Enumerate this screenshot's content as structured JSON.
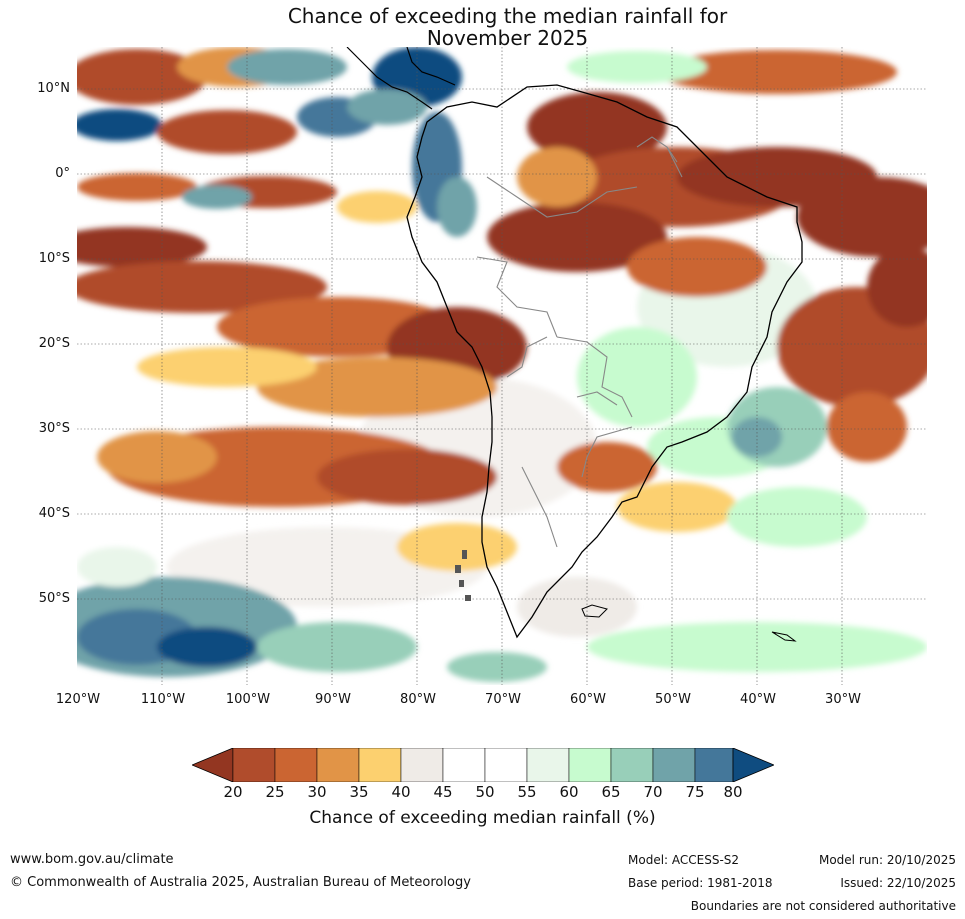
{
  "title": {
    "line1": "Chance of exceeding the median rainfall for",
    "line2": "November 2025"
  },
  "map": {
    "lat_labels": [
      "10°N",
      "0°",
      "10°S",
      "20°S",
      "30°S",
      "40°S",
      "50°S"
    ],
    "lon_labels": [
      "120°W",
      "110°W",
      "100°W",
      "90°W",
      "80°W",
      "70°W",
      "60°W",
      "50°W",
      "40°W",
      "30°W"
    ]
  },
  "colorbar": {
    "label": "Chance of exceeding median rainfall (%)",
    "ticks": [
      "20",
      "25",
      "30",
      "35",
      "40",
      "45",
      "50",
      "55",
      "60",
      "65",
      "70",
      "75",
      "80"
    ],
    "colors": [
      "#933621",
      "#b04c2c",
      "#cb6532",
      "#e19447",
      "#fcd06f",
      "#efebe7",
      "#ffffff",
      "#ffffff",
      "#e9f6ea",
      "#c7fbcf",
      "#98cfb9",
      "#70a3a9",
      "#44779a",
      "#0f4c80"
    ]
  },
  "footer": {
    "website": "www.bom.gov.au/climate",
    "copyright": "© Commonwealth of Australia 2025, Australian Bureau of Meteorology",
    "model": "Model: ACCESS-S2",
    "base_period": "Base period: 1981-2018",
    "model_run": "Model run: 20/10/2025",
    "issued": "Issued: 22/10/2025",
    "disclaimer": "Boundaries are not considered authoritative"
  }
}
